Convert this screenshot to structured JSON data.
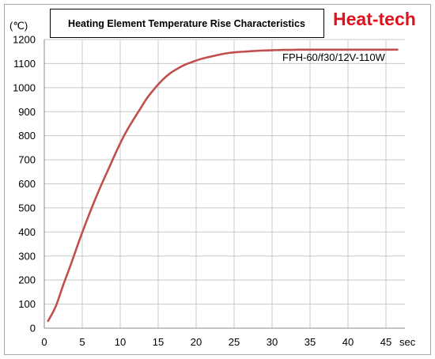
{
  "brand": "Heat-tech",
  "colors": {
    "line": "#c0504d",
    "grid": "#c8c8c8",
    "brand": "#e0141e",
    "border": "#a6a6a6"
  },
  "chart_data": {
    "type": "line",
    "title": "Heating Element Temperature Rise Characteristics",
    "ylabel": "(℃)",
    "xlabel": "sec",
    "xlim": [
      0,
      47.5
    ],
    "ylim": [
      0,
      1200
    ],
    "x_ticks": [
      "0",
      "5",
      "10",
      "15",
      "20",
      "25",
      "30",
      "35",
      "40",
      "45"
    ],
    "y_ticks": [
      "0",
      "100",
      "200",
      "300",
      "400",
      "500",
      "600",
      "700",
      "800",
      "900",
      "1000",
      "1100",
      "1200"
    ],
    "grid": true,
    "series": [
      {
        "name": "FPH-60/f30/12V-110W",
        "x": [
          0.5,
          1.5,
          2.5,
          3.5,
          4.5,
          5.5,
          6.5,
          7.5,
          8.5,
          9.5,
          10.5,
          11.5,
          12.5,
          13.5,
          14.5,
          15.5,
          16.5,
          17.5,
          18.5,
          19.5,
          20.5,
          21.5,
          22.5,
          23.5,
          24.5,
          25.5,
          26.5,
          27.5,
          28.5,
          29.5,
          30.5,
          31.5,
          32.5,
          33.5,
          34.5,
          35.5,
          36.5,
          37.5,
          38.5,
          39.5,
          40.5,
          41.5,
          42.5,
          43.5,
          44.5,
          45.5,
          46.5
        ],
        "y": [
          30,
          90,
          180,
          265,
          355,
          440,
          520,
          595,
          665,
          735,
          800,
          855,
          905,
          955,
          995,
          1030,
          1058,
          1078,
          1095,
          1107,
          1118,
          1126,
          1133,
          1140,
          1145,
          1148,
          1150,
          1152,
          1154,
          1155,
          1156,
          1157,
          1157,
          1158,
          1158,
          1158,
          1158,
          1158,
          1158,
          1158,
          1158,
          1158,
          1158,
          1158,
          1158,
          1158,
          1158
        ]
      }
    ]
  }
}
